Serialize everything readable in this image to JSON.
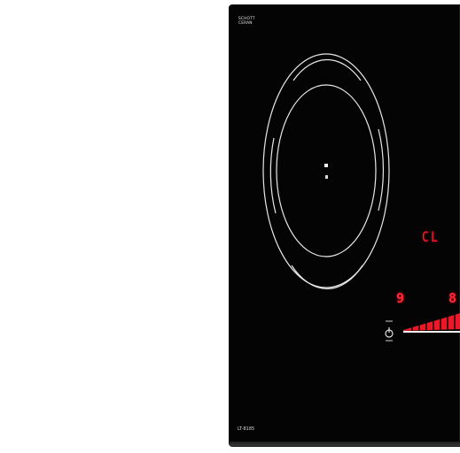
{
  "cooktop": {
    "brand": "SCHOTT CERAN",
    "model": "LT-8185",
    "display": {
      "status_code": "CL",
      "zone_left_level": "9",
      "zone_right_level": "8"
    }
  },
  "colors": {
    "glass": "#040404",
    "zone_markings": "#e8e8e8",
    "led_red": "#ff1e2d"
  },
  "icons": {
    "zone_center_marker": "dot-marker",
    "power_button": "power-icon"
  }
}
